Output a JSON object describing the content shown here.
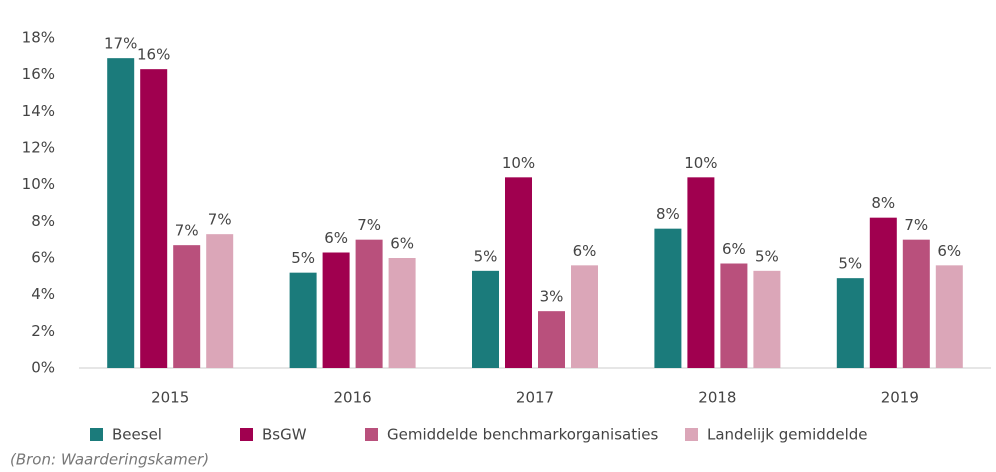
{
  "chart_data": {
    "type": "bar",
    "categories": [
      "2015",
      "2016",
      "2017",
      "2018",
      "2019"
    ],
    "series": [
      {
        "name": "Beesel",
        "color": "#1b7b7b",
        "values": [
          16.9,
          5.2,
          5.3,
          7.6,
          4.9
        ],
        "value_labels": [
          "17%",
          "5%",
          "5%",
          "8%",
          "5%"
        ]
      },
      {
        "name": "BsGW",
        "color": "#a0004f",
        "values": [
          16.3,
          6.3,
          10.4,
          10.4,
          8.2
        ],
        "value_labels": [
          "16%",
          "6%",
          "10%",
          "10%",
          "8%"
        ]
      },
      {
        "name": "Gemiddelde benchmarkorganisaties",
        "color": "#b9507c",
        "values": [
          6.7,
          7.0,
          3.1,
          5.7,
          7.0
        ],
        "value_labels": [
          "7%",
          "7%",
          "3%",
          "6%",
          "7%"
        ]
      },
      {
        "name": "Landelijk gemiddelde",
        "color": "#dba6b8",
        "values": [
          7.3,
          6.0,
          5.6,
          5.3,
          5.6
        ],
        "value_labels": [
          "7%",
          "6%",
          "6%",
          "5%",
          "6%"
        ]
      }
    ],
    "ylim": [
      0,
      18
    ],
    "yticks": [
      {
        "value": 0,
        "label": "0%"
      },
      {
        "value": 2,
        "label": "2%"
      },
      {
        "value": 4,
        "label": "4%"
      },
      {
        "value": 6,
        "label": "6%"
      },
      {
        "value": 8,
        "label": "8%"
      },
      {
        "value": 10,
        "label": "10%"
      },
      {
        "value": 12,
        "label": "12%"
      },
      {
        "value": 14,
        "label": "14%"
      },
      {
        "value": 16,
        "label": "16%"
      },
      {
        "value": 18,
        "label": "18%"
      }
    ],
    "grid": false,
    "source": "(Bron: Waarderingskamer)"
  }
}
